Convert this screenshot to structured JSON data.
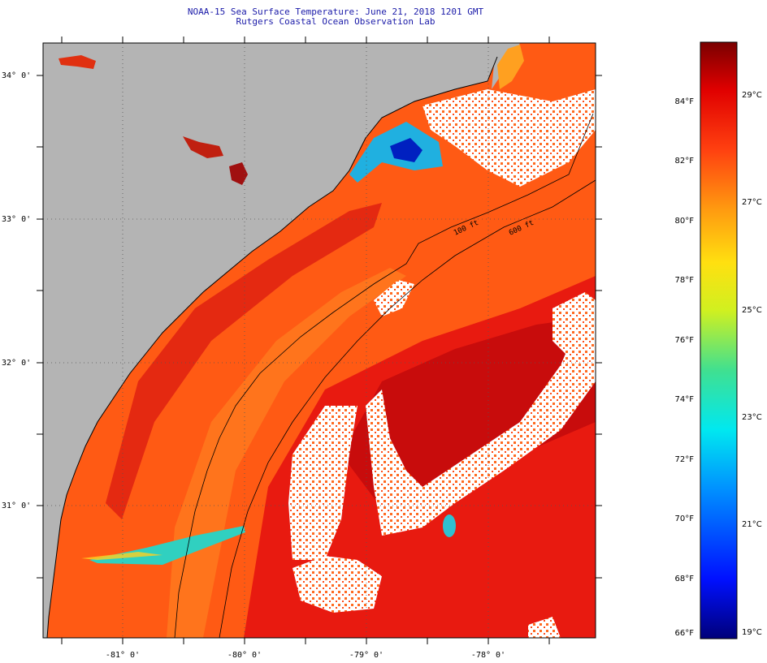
{
  "title": {
    "line1": "NOAA-15 Sea Surface Temperature:  June 21, 2018 1201 GMT",
    "line2": "Rutgers Coastal Ocean Observation Lab"
  },
  "map": {
    "lat_labels": [
      "34° 0'",
      "33° 0'",
      "32° 0'",
      "31° 0'"
    ],
    "lon_labels": [
      "-81° 0'",
      "-80° 0'",
      "-79° 0'",
      "-78° 0'"
    ],
    "isobath_labels": [
      "100 ft",
      "600 ft"
    ],
    "colors": {
      "land": "#b4b4b4",
      "cloud": "#ffffff",
      "sst_main": "#ff5a14",
      "sst_warm": "#d21010",
      "sst_cool": "#ff8c1e"
    }
  },
  "colorbar": {
    "fahrenheit": [
      {
        "label": "84°F",
        "value": 84
      },
      {
        "label": "82°F",
        "value": 82
      },
      {
        "label": "80°F",
        "value": 80
      },
      {
        "label": "78°F",
        "value": 78
      },
      {
        "label": "76°F",
        "value": 76
      },
      {
        "label": "74°F",
        "value": 74
      },
      {
        "label": "72°F",
        "value": 72
      },
      {
        "label": "70°F",
        "value": 70
      },
      {
        "label": "68°F",
        "value": 68
      },
      {
        "label": "66°F",
        "value": 66
      }
    ],
    "celsius": [
      {
        "label": "29°C",
        "value": 29
      },
      {
        "label": "27°C",
        "value": 27
      },
      {
        "label": "25°C",
        "value": 25
      },
      {
        "label": "23°C",
        "value": 23
      },
      {
        "label": "21°C",
        "value": 21
      },
      {
        "label": "19°C",
        "value": 19
      }
    ],
    "range_f": [
      66,
      86
    ]
  }
}
